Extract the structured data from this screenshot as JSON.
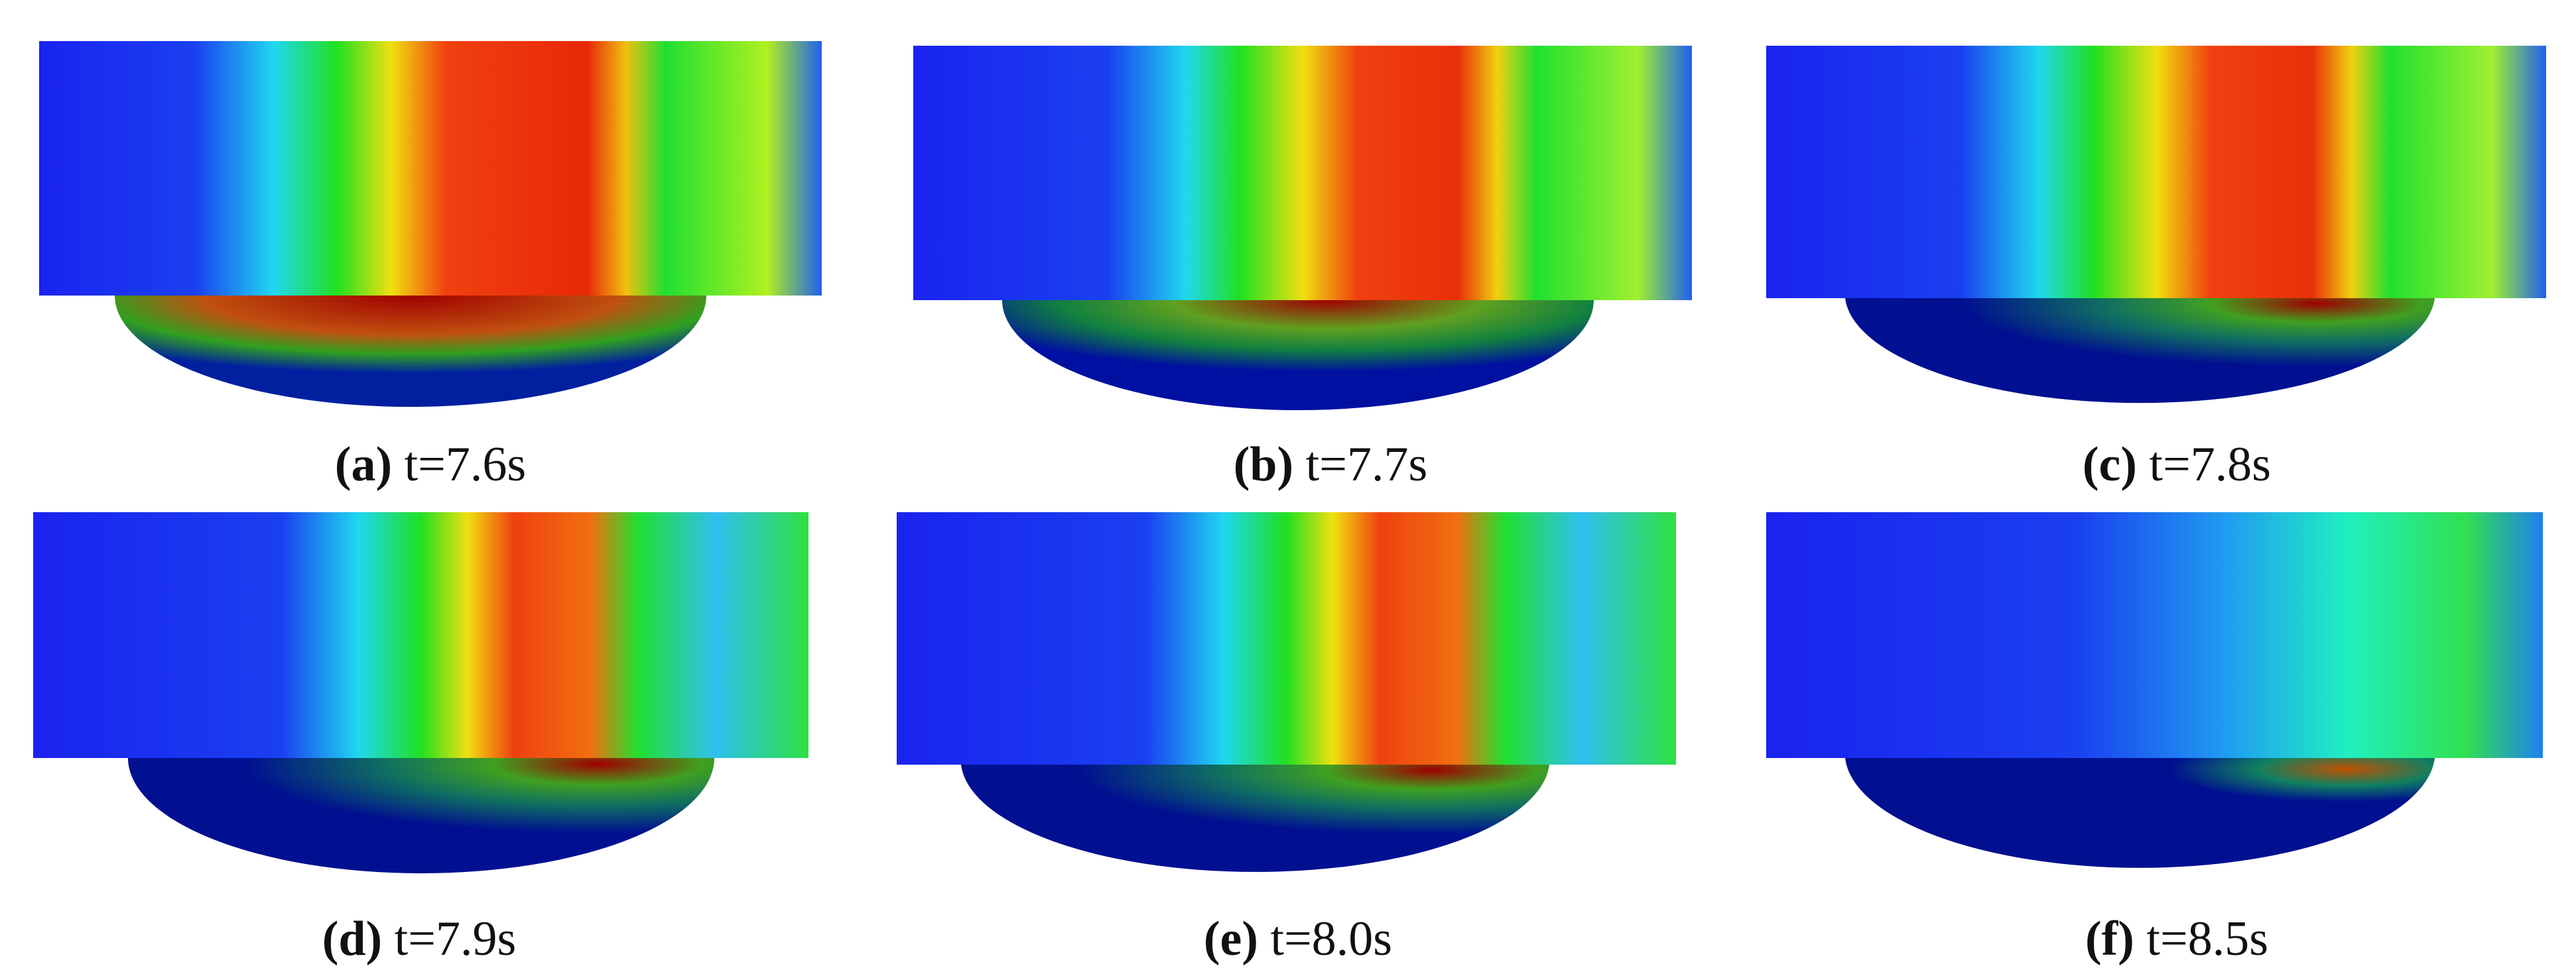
{
  "panels": [
    {
      "letter": "(a)",
      "caption": "t=7.6s"
    },
    {
      "letter": "(b)",
      "caption": "t=7.7s"
    },
    {
      "letter": "(c)",
      "caption": "t=7.8s"
    },
    {
      "letter": "(d)",
      "caption": "t=7.9s"
    },
    {
      "letter": "(e)",
      "caption": "t=8.0s"
    },
    {
      "letter": "(f)",
      "caption": "t=8.5s"
    }
  ]
}
